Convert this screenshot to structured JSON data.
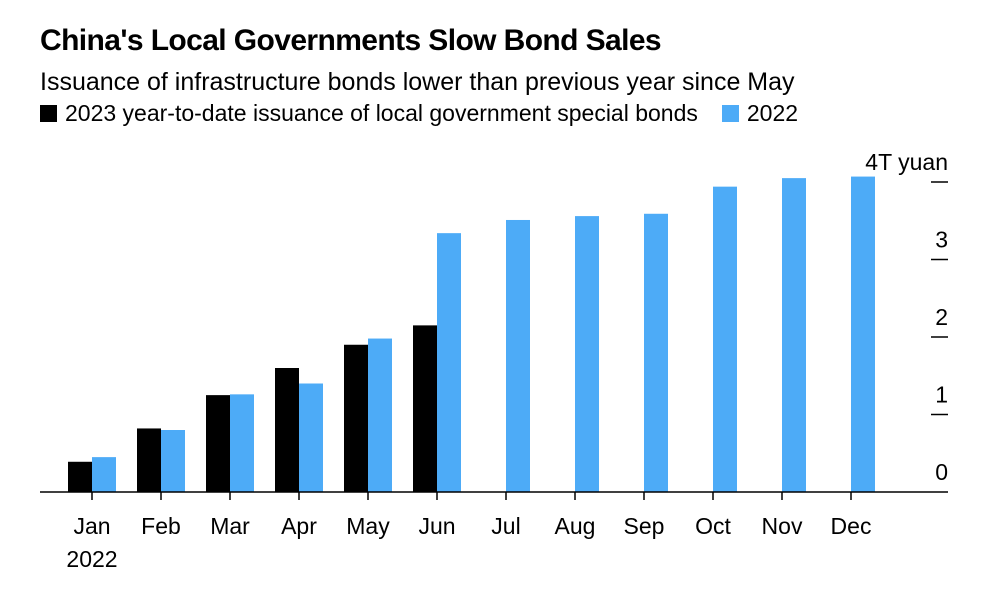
{
  "chart_data": {
    "type": "bar",
    "title": "China's Local Governments Slow Bond Sales",
    "subtitle": "Issuance of infrastructure bonds lower than previous year since May",
    "categories": [
      "Jan",
      "Feb",
      "Mar",
      "Apr",
      "May",
      "Jun",
      "Jul",
      "Aug",
      "Sep",
      "Oct",
      "Nov",
      "Dec"
    ],
    "x_year_label": "2022",
    "series": [
      {
        "name": "2023 year-to-date issuance of local government special bonds",
        "color": "#000000",
        "values": [
          0.39,
          0.82,
          1.25,
          1.6,
          1.9,
          2.15,
          null,
          null,
          null,
          null,
          null,
          null
        ]
      },
      {
        "name": "2022",
        "color": "#4dabf7",
        "values": [
          0.45,
          0.8,
          1.26,
          1.4,
          1.98,
          3.34,
          3.51,
          3.56,
          3.59,
          3.94,
          4.05,
          4.07
        ]
      }
    ],
    "y_unit_label": "T yuan",
    "y_ticks": [
      0,
      1,
      2,
      3,
      4
    ],
    "ylim": [
      0,
      4.2
    ],
    "grid": false,
    "legend_position": "top-left"
  }
}
